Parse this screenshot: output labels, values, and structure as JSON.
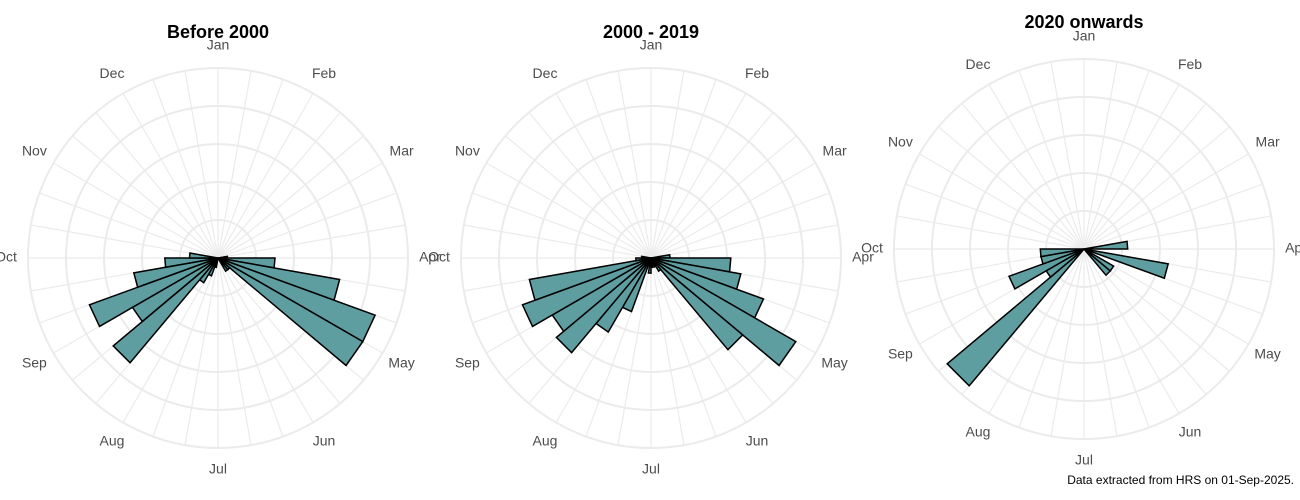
{
  "chart_data": [
    {
      "type": "bar",
      "title": "Before 2000",
      "polar": true,
      "bin_degrees": 10,
      "month_labels": [
        "Jan",
        "Feb",
        "Mar",
        "Apr",
        "May",
        "Jun",
        "Jul",
        "Aug",
        "Sep",
        "Oct",
        "Nov",
        "Dec"
      ],
      "grid": true,
      "bar_color": "#5f9ea0",
      "bars": [
        {
          "angle": 85,
          "value": 0.05
        },
        {
          "angle": 95,
          "value": 0.3
        },
        {
          "angle": 105,
          "value": 0.65
        },
        {
          "angle": 115,
          "value": 0.88
        },
        {
          "angle": 125,
          "value": 0.88
        },
        {
          "angle": 135,
          "value": 0.08
        },
        {
          "angle": 145,
          "value": 0.08
        },
        {
          "angle": 195,
          "value": 0.05
        },
        {
          "angle": 205,
          "value": 0.1
        },
        {
          "angle": 215,
          "value": 0.15
        },
        {
          "angle": 225,
          "value": 0.72
        },
        {
          "angle": 235,
          "value": 0.52
        },
        {
          "angle": 245,
          "value": 0.72
        },
        {
          "angle": 255,
          "value": 0.45
        },
        {
          "angle": 265,
          "value": 0.28
        },
        {
          "angle": 275,
          "value": 0.15
        }
      ]
    },
    {
      "type": "bar",
      "title": "2000 - 2019",
      "polar": true,
      "bin_degrees": 10,
      "month_labels": [
        "Jan",
        "Feb",
        "Mar",
        "Apr",
        "May",
        "Jun",
        "Jul",
        "Aug",
        "Sep",
        "Oct",
        "Nov",
        "Dec"
      ],
      "grid": true,
      "bar_color": "#5f9ea0",
      "bars": [
        {
          "angle": 85,
          "value": 0.1
        },
        {
          "angle": 95,
          "value": 0.42
        },
        {
          "angle": 105,
          "value": 0.48
        },
        {
          "angle": 115,
          "value": 0.63
        },
        {
          "angle": 125,
          "value": 0.88
        },
        {
          "angle": 135,
          "value": 0.63
        },
        {
          "angle": 145,
          "value": 0.08
        },
        {
          "angle": 155,
          "value": 0.05
        },
        {
          "angle": 175,
          "value": 0.05
        },
        {
          "angle": 185,
          "value": 0.08
        },
        {
          "angle": 205,
          "value": 0.3
        },
        {
          "angle": 215,
          "value": 0.45
        },
        {
          "angle": 225,
          "value": 0.65
        },
        {
          "angle": 235,
          "value": 0.6
        },
        {
          "angle": 245,
          "value": 0.72
        },
        {
          "angle": 255,
          "value": 0.65
        },
        {
          "angle": 265,
          "value": 0.08
        },
        {
          "angle": 275,
          "value": 0.05
        }
      ]
    },
    {
      "type": "bar",
      "title": "2020 onwards",
      "polar": true,
      "bin_degrees": 10,
      "month_labels": [
        "Jan",
        "Feb",
        "Mar",
        "Apr",
        "May",
        "Jun",
        "Jul",
        "Aug",
        "Sep",
        "Oct",
        "Nov",
        "Dec"
      ],
      "grid": true,
      "bar_color": "#5f9ea0",
      "bars": [
        {
          "angle": 85,
          "value": 0.23
        },
        {
          "angle": 105,
          "value": 0.45
        },
        {
          "angle": 125,
          "value": 0.18
        },
        {
          "angle": 135,
          "value": 0.18
        },
        {
          "angle": 225,
          "value": 0.94
        },
        {
          "angle": 235,
          "value": 0.23
        },
        {
          "angle": 245,
          "value": 0.42
        },
        {
          "angle": 255,
          "value": 0.23
        },
        {
          "angle": 265,
          "value": 0.23
        }
      ]
    }
  ],
  "caption": "Data extracted from HRS on 01-Sep-2025."
}
